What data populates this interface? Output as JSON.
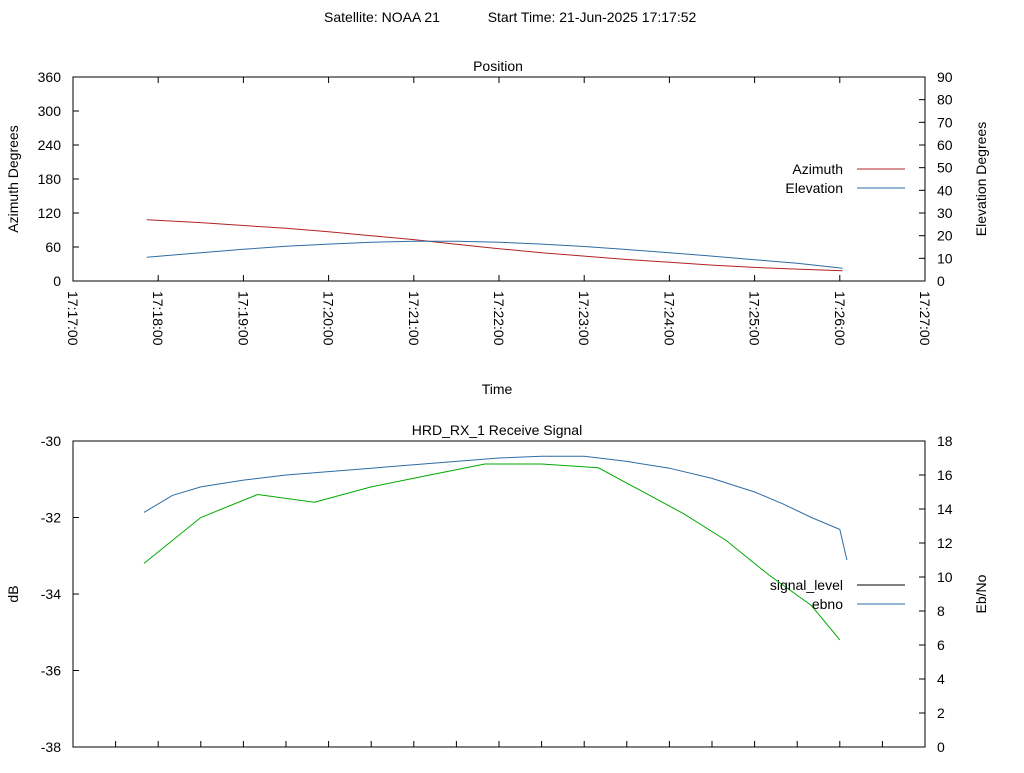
{
  "header": {
    "satellite": "Satellite: NOAA 21",
    "start_time": "Start Time: 21-Jun-2025 17:17:52"
  },
  "colors": {
    "azimuth": "#b22222",
    "elevation": "#2e6ca4",
    "signal_level": "#000000",
    "ebno": "#2e6ca4",
    "signal_trace": "#00aa00"
  },
  "chart_data": [
    {
      "type": "line",
      "title": "Position",
      "xlabel": "Time",
      "ylabel": "Azimuth Degrees",
      "y2label": "Elevation Degrees",
      "xlim": [
        "17:17:00",
        "17:27:00"
      ],
      "ylim": [
        0,
        360
      ],
      "y2lim": [
        0,
        90
      ],
      "x_ticks": [
        "17:17:00",
        "17:18:00",
        "17:19:00",
        "17:20:00",
        "17:21:00",
        "17:22:00",
        "17:23:00",
        "17:24:00",
        "17:25:00",
        "17:26:00",
        "17:27:00"
      ],
      "y_ticks": [
        0,
        60,
        120,
        180,
        240,
        300,
        360
      ],
      "y2_ticks": [
        0,
        10,
        20,
        30,
        40,
        50,
        60,
        70,
        80,
        90
      ],
      "legend_position": "right",
      "series": [
        {
          "name": "Azimuth",
          "axis": "left",
          "x": [
            "17:17:52",
            "17:18:30",
            "17:19:00",
            "17:19:30",
            "17:20:00",
            "17:20:30",
            "17:21:00",
            "17:21:30",
            "17:22:00",
            "17:22:30",
            "17:23:00",
            "17:23:30",
            "17:24:00",
            "17:24:30",
            "17:25:00",
            "17:25:30",
            "17:26:02"
          ],
          "y": [
            108,
            103,
            98,
            93,
            87,
            80,
            73,
            65,
            57,
            50,
            44,
            38,
            33,
            28,
            24,
            21,
            18
          ]
        },
        {
          "name": "Elevation",
          "axis": "right",
          "x": [
            "17:17:52",
            "17:18:30",
            "17:19:00",
            "17:19:30",
            "17:20:00",
            "17:20:30",
            "17:21:00",
            "17:21:30",
            "17:22:00",
            "17:22:30",
            "17:23:00",
            "17:23:30",
            "17:24:00",
            "17:24:30",
            "17:25:00",
            "17:25:30",
            "17:26:02"
          ],
          "y": [
            10.5,
            12.5,
            14.0,
            15.3,
            16.3,
            17.1,
            17.5,
            17.5,
            17.1,
            16.3,
            15.2,
            13.9,
            12.5,
            11.0,
            9.4,
            7.8,
            5.6
          ]
        }
      ]
    },
    {
      "type": "line",
      "title": "HRD_RX_1 Receive Signal",
      "ylabel": "dB",
      "y2label": "Eb/No",
      "xlim": [
        "17:17:00",
        "17:27:00"
      ],
      "ylim": [
        -38,
        -30
      ],
      "y2lim": [
        0,
        18
      ],
      "y_ticks": [
        -38,
        -36,
        -34,
        -32,
        -30
      ],
      "y2_ticks": [
        0,
        2,
        4,
        6,
        8,
        10,
        12,
        14,
        16,
        18
      ],
      "legend_position": "right",
      "series": [
        {
          "name": "signal_level",
          "axis": "left",
          "x": [
            "17:17:50",
            "17:18:30",
            "17:19:10",
            "17:19:50",
            "17:20:30",
            "17:21:10",
            "17:21:50",
            "17:22:30",
            "17:23:10",
            "17:23:40",
            "17:24:10",
            "17:24:40",
            "17:25:10",
            "17:25:40",
            "17:26:00"
          ],
          "y": [
            -33.2,
            -32.0,
            -31.4,
            -31.6,
            -31.2,
            -30.9,
            -30.6,
            -30.6,
            -30.7,
            -31.3,
            -31.9,
            -32.6,
            -33.5,
            -34.3,
            -35.2
          ]
        },
        {
          "name": "ebno",
          "axis": "right",
          "x": [
            "17:17:50",
            "17:18:10",
            "17:18:30",
            "17:19:00",
            "17:19:30",
            "17:20:00",
            "17:20:30",
            "17:21:00",
            "17:21:30",
            "17:22:00",
            "17:22:30",
            "17:23:00",
            "17:23:30",
            "17:24:00",
            "17:24:30",
            "17:25:00",
            "17:25:20",
            "17:25:40",
            "17:26:00",
            "17:26:05"
          ],
          "y": [
            13.8,
            14.8,
            15.3,
            15.7,
            16.0,
            16.2,
            16.4,
            16.6,
            16.8,
            17.0,
            17.1,
            17.1,
            16.8,
            16.4,
            15.8,
            15.0,
            14.3,
            13.5,
            12.8,
            11.0
          ]
        }
      ]
    }
  ]
}
